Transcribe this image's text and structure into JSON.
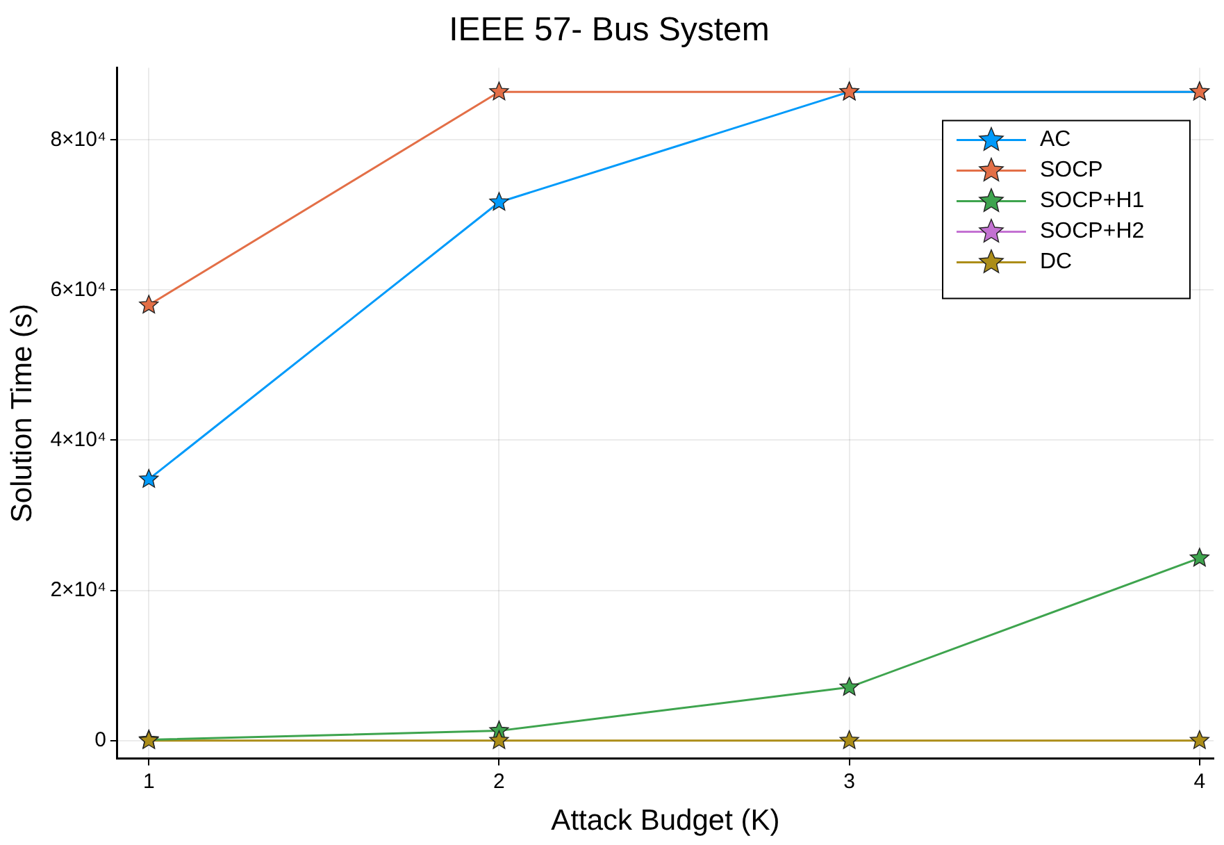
{
  "chart_data": {
    "type": "line",
    "title": "IEEE 57- Bus System",
    "xlabel": "Attack Budget (K)",
    "ylabel": "Solution Time (s)",
    "x": [
      1,
      2,
      3,
      4
    ],
    "series": [
      {
        "name": "AC",
        "color": "#009afa",
        "values": [
          34800,
          71700,
          86400,
          86400
        ]
      },
      {
        "name": "SOCP",
        "color": "#e36f47",
        "values": [
          58000,
          86400,
          86400,
          86400
        ]
      },
      {
        "name": "SOCP+H1",
        "color": "#3ea44e",
        "values": [
          100,
          1300,
          7100,
          24300
        ]
      },
      {
        "name": "SOCP+H2",
        "color": "#c371d2",
        "values": [
          null,
          null,
          null,
          null
        ]
      },
      {
        "name": "DC",
        "color": "#ac8d18",
        "values": [
          0,
          0,
          0,
          0
        ]
      }
    ],
    "xlim": [
      0.91,
      4.04
    ],
    "xticks": [
      1,
      2,
      3,
      4
    ],
    "ylim": [
      -2400,
      89600
    ],
    "yticks": [
      0,
      {
        "value": 20000,
        "label": "2×10⁴"
      },
      {
        "value": 40000,
        "label": "4×10⁴"
      },
      {
        "value": 60000,
        "label": "6×10⁴"
      },
      {
        "value": 80000,
        "label": "8×10⁴"
      }
    ],
    "grid": true,
    "legend": "top right",
    "marker": "star",
    "line_style": "solid"
  }
}
